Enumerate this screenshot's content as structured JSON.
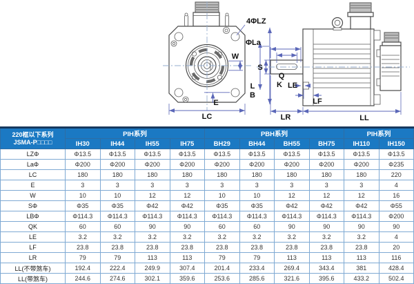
{
  "drawing": {
    "labels": {
      "lz": "4ΦLZ",
      "la": "ΦLa",
      "w": "W",
      "e": "E",
      "lc": "LC",
      "s": "S",
      "q": "Q",
      "k": "K",
      "lb_l": "L",
      "lb_b": "B",
      "le": "LE",
      "lf": "LF",
      "lr": "LR",
      "ll": "LL"
    }
  },
  "table": {
    "corner_header_line1": "220框以下系列",
    "corner_header_line2": "JSMA-P□□□□",
    "groups": [
      {
        "label": "PIH系列",
        "span": 4
      },
      {
        "label": "PBH系列",
        "span": 4
      },
      {
        "label": "PIH系列",
        "span": 2
      }
    ],
    "models": [
      "IH30",
      "IH44",
      "IH55",
      "IH75",
      "BH29",
      "BH44",
      "BH55",
      "BH75",
      "IH110",
      "IH150"
    ],
    "rows": [
      {
        "label": "LZΦ",
        "values": [
          "Φ13.5",
          "Φ13.5",
          "Φ13.5",
          "Φ13.5",
          "Φ13.5",
          "Φ13.5",
          "Φ13.5",
          "Φ13.5",
          "Φ13.5",
          "Φ13.5"
        ]
      },
      {
        "label": "LaΦ",
        "values": [
          "Φ200",
          "Φ200",
          "Φ200",
          "Φ200",
          "Φ200",
          "Φ200",
          "Φ200",
          "Φ200",
          "Φ200",
          "Φ235"
        ]
      },
      {
        "label": "LC",
        "values": [
          "180",
          "180",
          "180",
          "180",
          "180",
          "180",
          "180",
          "180",
          "180",
          "220"
        ]
      },
      {
        "label": "E",
        "values": [
          "3",
          "3",
          "3",
          "3",
          "3",
          "3",
          "3",
          "3",
          "3",
          "4"
        ]
      },
      {
        "label": "W",
        "values": [
          "10",
          "10",
          "12",
          "12",
          "10",
          "10",
          "12",
          "12",
          "12",
          "16"
        ]
      },
      {
        "label": "SΦ",
        "values": [
          "Φ35",
          "Φ35",
          "Φ42",
          "Φ42",
          "Φ35",
          "Φ35",
          "Φ42",
          "Φ42",
          "Φ42",
          "Φ55"
        ]
      },
      {
        "label": "LBΦ",
        "values": [
          "Φ114.3",
          "Φ114.3",
          "Φ114.3",
          "Φ114.3",
          "Φ114.3",
          "Φ114.3",
          "Φ114.3",
          "Φ114.3",
          "Φ114.3",
          "Φ200"
        ]
      },
      {
        "label": "QK",
        "values": [
          "60",
          "60",
          "90",
          "90",
          "60",
          "60",
          "90",
          "90",
          "90",
          "90"
        ]
      },
      {
        "label": "LE",
        "values": [
          "3.2",
          "3.2",
          "3.2",
          "3.2",
          "3.2",
          "3.2",
          "3.2",
          "3.2",
          "3.2",
          "4"
        ]
      },
      {
        "label": "LF",
        "values": [
          "23.8",
          "23.8",
          "23.8",
          "23.8",
          "23.8",
          "23.8",
          "23.8",
          "23.8",
          "23.8",
          "20"
        ]
      },
      {
        "label": "LR",
        "values": [
          "79",
          "79",
          "113",
          "113",
          "79",
          "79",
          "113",
          "113",
          "113",
          "116"
        ]
      },
      {
        "label": "LL(不带煞车)",
        "values": [
          "192.4",
          "222.4",
          "249.9",
          "307.4",
          "201.4",
          "233.4",
          "269.4",
          "343.4",
          "381",
          "428.4"
        ]
      },
      {
        "label": "LL(带煞车)",
        "values": [
          "244.6",
          "274.6",
          "302.1",
          "359.6",
          "253.6",
          "285.6",
          "321.6",
          "395.6",
          "433.2",
          "502.4"
        ]
      }
    ]
  },
  "colors": {
    "header_blue": "#1b79c3",
    "top_rule_navy": "#17395f",
    "grid_blue": "#7ea9d3",
    "dim_line_blue": "#5b67b8",
    "drawing_line": "#4a4a4a"
  }
}
